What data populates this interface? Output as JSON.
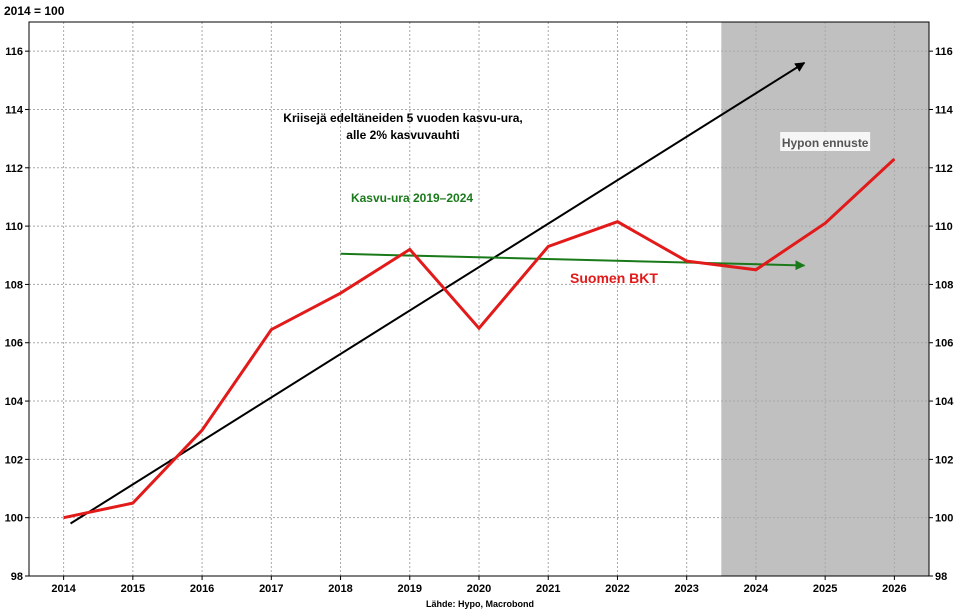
{
  "chart_data": {
    "type": "line",
    "title": "2014 = 100",
    "source": "Lähde: Hypo, Macrobond",
    "x": [
      2014,
      2015,
      2016,
      2017,
      2018,
      2019,
      2020,
      2021,
      2022,
      2023,
      2024,
      2025,
      2026
    ],
    "xtick_labels": [
      "2014",
      "2015",
      "2016",
      "2017",
      "2018",
      "2019",
      "2020",
      "2021",
      "2022",
      "2023",
      "2024",
      "2025",
      "2026"
    ],
    "ylim": [
      98,
      117
    ],
    "yticks": [
      98,
      100,
      102,
      104,
      106,
      108,
      110,
      112,
      114,
      116
    ],
    "grid": true,
    "forecast_region": {
      "from": 2023.5,
      "to": 2026.5,
      "label": "Hypon ennuste",
      "color": "#c0c0c0"
    },
    "series": [
      {
        "name": "Suomen BKT",
        "color": "#e21a1a",
        "x": [
          2014,
          2015,
          2016,
          2017,
          2018,
          2019,
          2020,
          2021,
          2022,
          2023,
          2024,
          2025,
          2026
        ],
        "values": [
          100.0,
          100.5,
          103.0,
          106.45,
          107.7,
          109.2,
          106.5,
          109.3,
          110.15,
          108.8,
          108.5,
          110.1,
          112.3
        ]
      }
    ],
    "trend_lines": [
      {
        "name": "Kriisejä edeltäneiden 5 vuoden kasvu-ura, alle 2% kasvuvauhti",
        "color": "#000000",
        "from": [
          2014.1,
          99.8
        ],
        "to": [
          2024.7,
          115.6
        ]
      },
      {
        "name": "Kasvu-ura 2019–2024",
        "color": "#1a7a1a",
        "from": [
          2018.0,
          109.05
        ],
        "to": [
          2024.7,
          108.65
        ]
      }
    ],
    "annotations": {
      "black_line1": "Kriisejä edeltäneiden 5 vuoden kasvu-ura,",
      "black_line2": "alle 2% kasvuvauhti",
      "green": "Kasvu-ura 2019–2024",
      "series_label": "Suomen BKT"
    },
    "colors": {
      "series": "#e21a1a",
      "black_trend": "#000000",
      "green_trend": "#1a7a1a",
      "forecast_bg": "#c0c0c0",
      "grid": "#a8a8a8"
    }
  }
}
